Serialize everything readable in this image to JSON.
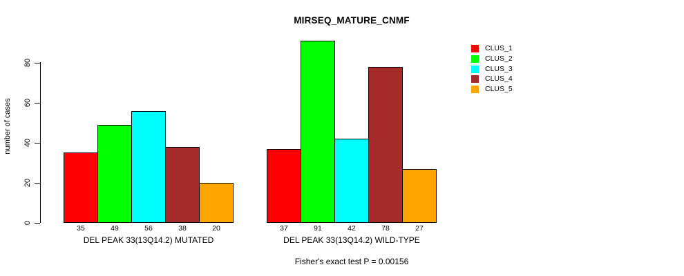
{
  "chart_data": {
    "type": "bar",
    "title": "MIRSEQ_MATURE_CNMF",
    "ylabel": "number of cases",
    "xlabel": "",
    "annotation": "Fisher's exact test P = 0.00156",
    "yticks": [
      0,
      20,
      40,
      60,
      80
    ],
    "ylim": [
      0,
      93
    ],
    "grid": false,
    "legend_position": "right",
    "legend": [
      {
        "label": "CLUS_1",
        "color": "#FF0000"
      },
      {
        "label": "CLUS_2",
        "color": "#00FF00"
      },
      {
        "label": "CLUS_3",
        "color": "#00FFFF"
      },
      {
        "label": "CLUS_4",
        "color": "#A52A2A"
      },
      {
        "label": "CLUS_5",
        "color": "#FFA500"
      }
    ],
    "groups": [
      {
        "label": "DEL PEAK 33(13Q14.2) MUTATED",
        "values": [
          35,
          49,
          56,
          38,
          20
        ]
      },
      {
        "label": "DEL PEAK 33(13Q14.2) WILD-TYPE",
        "values": [
          37,
          91,
          42,
          78,
          27
        ]
      }
    ]
  }
}
